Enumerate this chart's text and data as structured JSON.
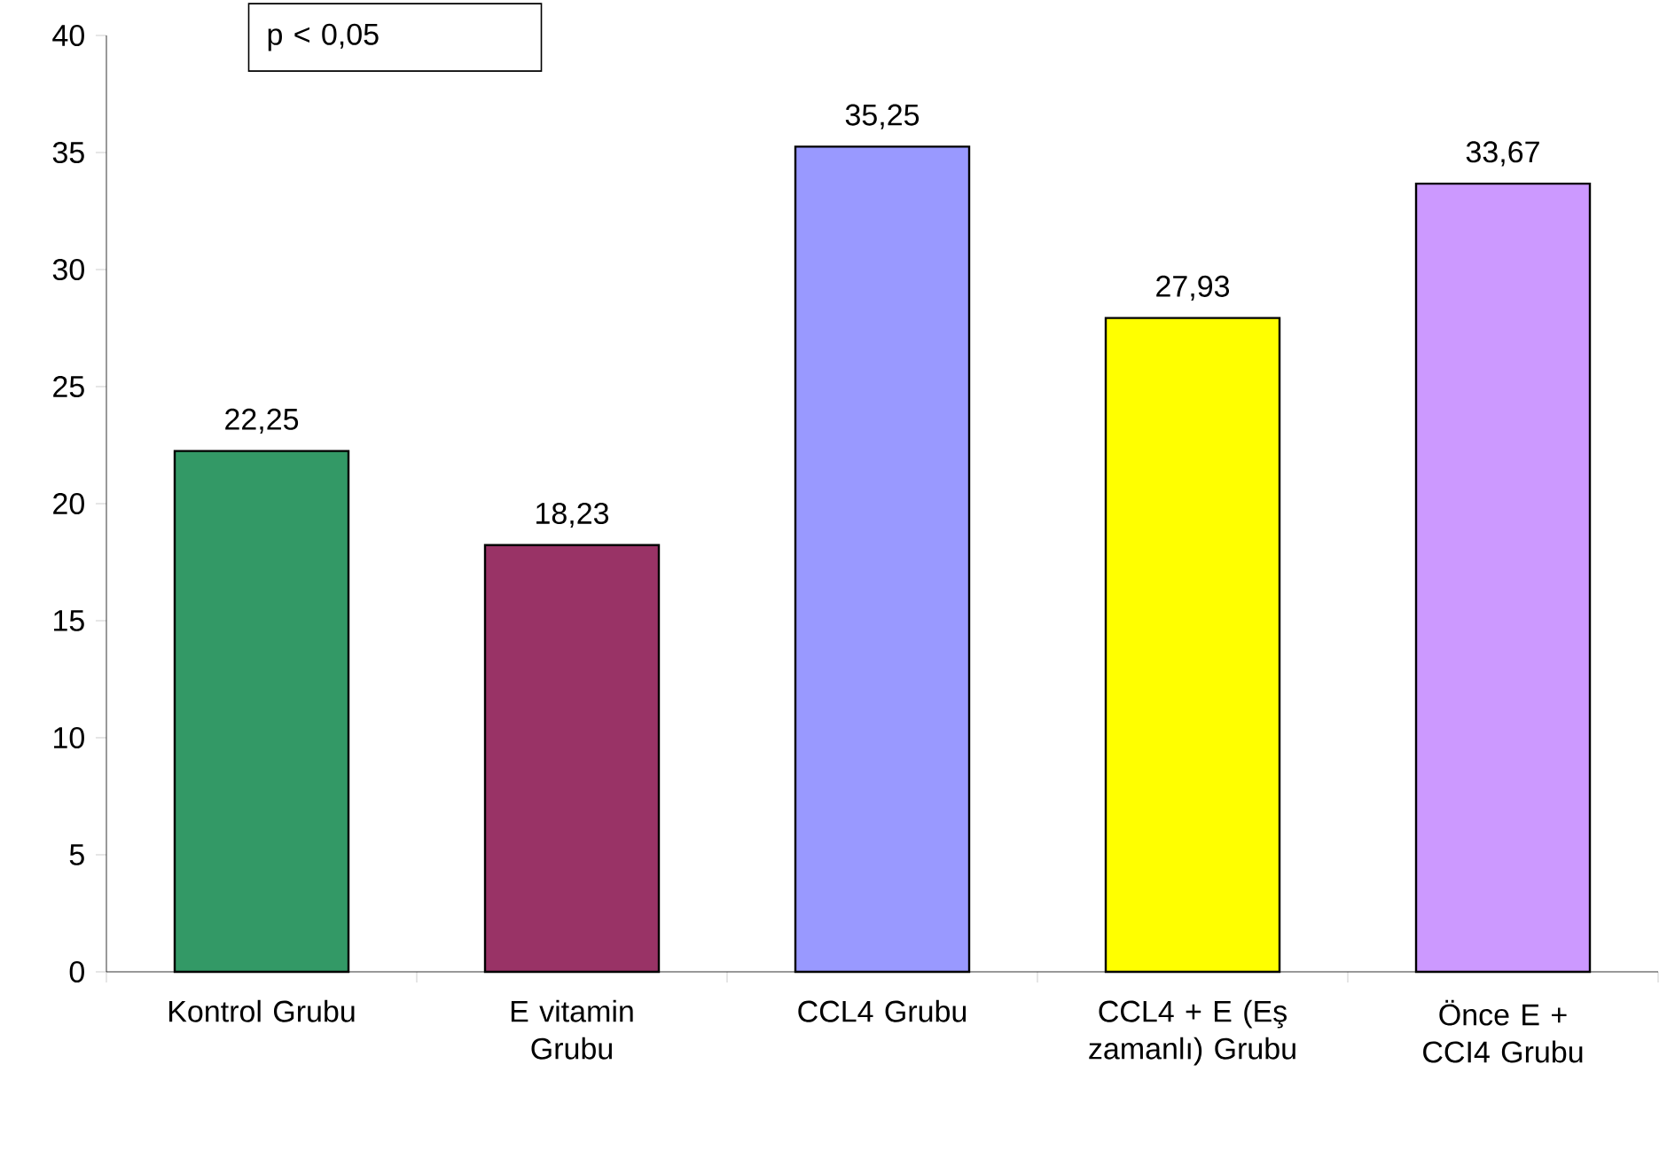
{
  "chart_data": {
    "type": "bar",
    "categories": [
      "Kontrol Grubu",
      "E vitamin Grubu",
      "CCL4 Grubu",
      "CCL4 + E (Eş zamanlı) Grubu",
      "Önce E + CCI4 Grubu"
    ],
    "values": [
      22.25,
      18.23,
      35.25,
      27.93,
      33.67
    ],
    "colors": [
      "#339966",
      "#993366",
      "#9999ff",
      "#ffff00",
      "#cc99ff"
    ],
    "value_labels": [
      "22,25",
      "18,23",
      "35,25",
      "27,93",
      "33,67"
    ],
    "ylim": [
      0,
      40
    ],
    "yticks": [
      0,
      5,
      10,
      15,
      20,
      25,
      30,
      35,
      40
    ],
    "annotations": [
      "p < 0,05"
    ],
    "grid": false
  }
}
